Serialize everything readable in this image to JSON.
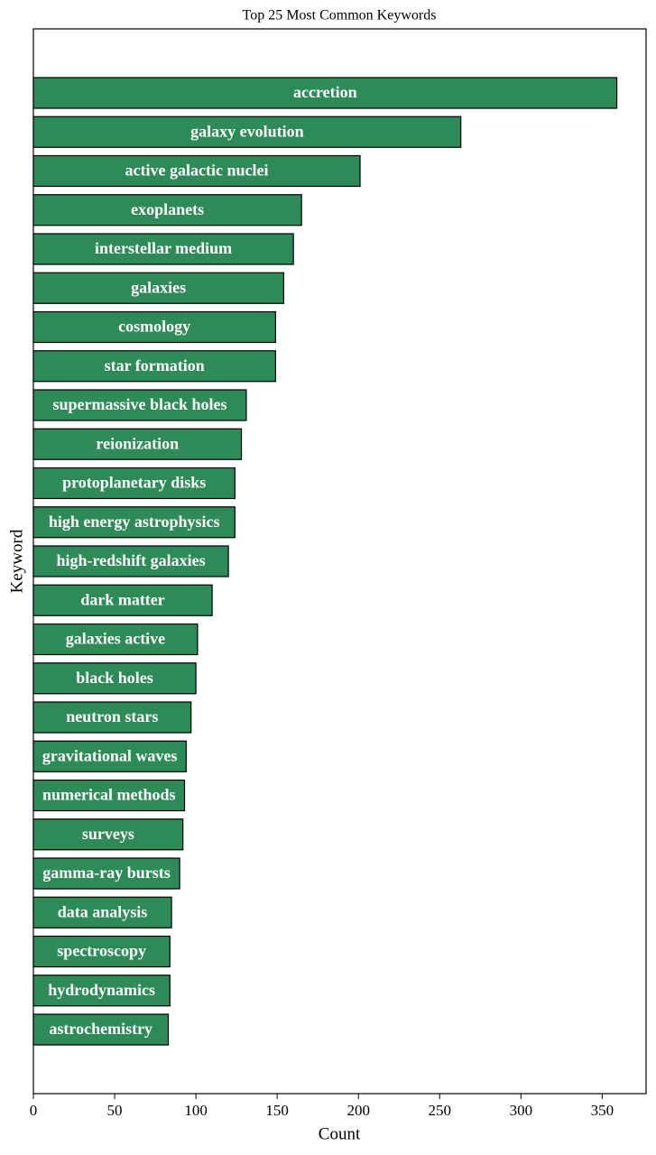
{
  "chart_data": {
    "type": "barh",
    "title": "Top 25 Most Common Keywords",
    "xlabel": "Count",
    "ylabel": "Keyword",
    "categories": [
      "accretion",
      "galaxy evolution",
      "active galactic nuclei",
      "exoplanets",
      "interstellar medium",
      "galaxies",
      "cosmology",
      "star formation",
      "supermassive black holes",
      "reionization",
      "protoplanetary disks",
      "high energy astrophysics",
      "high-redshift galaxies",
      "dark matter",
      "galaxies active",
      "black holes",
      "neutron stars",
      "gravitational waves",
      "numerical methods",
      "surveys",
      "gamma-ray bursts",
      "data analysis",
      "spectroscopy",
      "hydrodynamics",
      "astrochemistry"
    ],
    "values": [
      359,
      263,
      201,
      165,
      160,
      154,
      149,
      149,
      131,
      128,
      124,
      124,
      120,
      110,
      101,
      100,
      97,
      94,
      93,
      92,
      90,
      85,
      84,
      84,
      83
    ],
    "color": "#2e8b57",
    "xlim": [
      0,
      377
    ],
    "xticks": [
      0,
      50,
      100,
      150,
      200,
      250,
      300,
      350
    ]
  }
}
